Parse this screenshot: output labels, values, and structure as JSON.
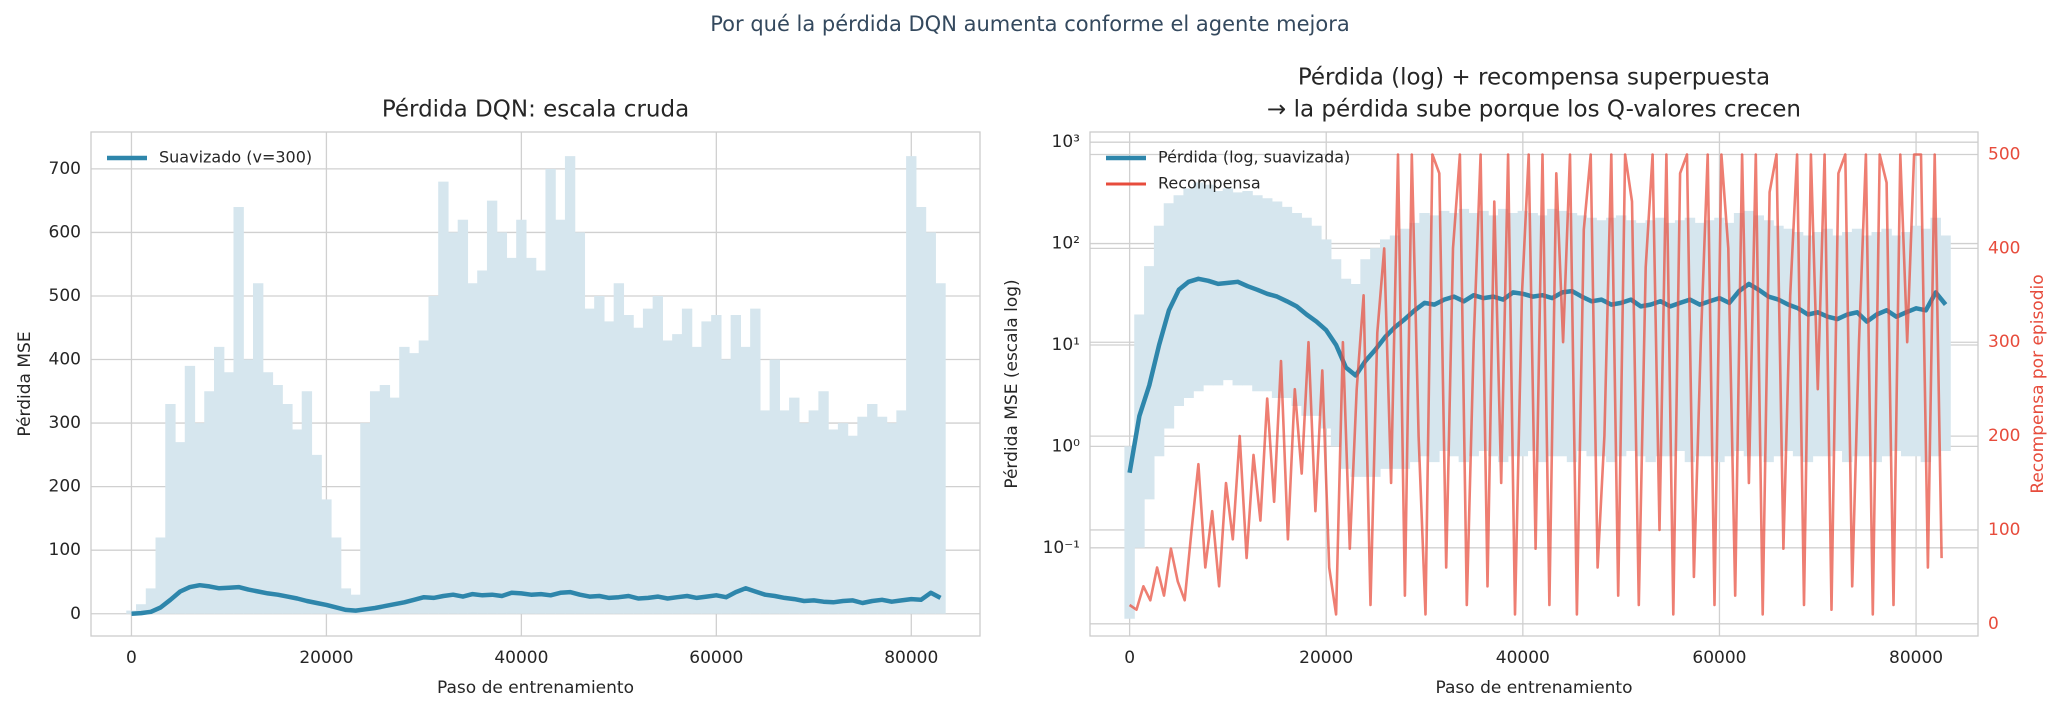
{
  "title": "Por qué la pérdida DQN aumenta conforme el agente mejora",
  "chart_data": [
    {
      "type": "line",
      "title": [
        "Pérdida DQN: escala cruda"
      ],
      "xlabel": "Paso de entrenamiento",
      "ylabel": "Pérdida MSE",
      "xlim": [
        -4150,
        87050
      ],
      "ylim": [
        -35,
        758
      ],
      "xticks": [
        0,
        20000,
        40000,
        60000,
        80000
      ],
      "yticks": [
        0,
        100,
        200,
        300,
        400,
        500,
        600,
        700
      ],
      "grid": true,
      "log_scale": false,
      "legend": "upper left",
      "x": [
        0,
        1000,
        2000,
        3000,
        4000,
        5000,
        6000,
        7000,
        8000,
        9000,
        10000,
        11000,
        12000,
        13000,
        14000,
        15000,
        16000,
        17000,
        18000,
        19000,
        20000,
        21000,
        22000,
        23000,
        24000,
        25000,
        26000,
        27000,
        28000,
        29000,
        30000,
        31000,
        32000,
        33000,
        34000,
        35000,
        36000,
        37000,
        38000,
        39000,
        40000,
        41000,
        42000,
        43000,
        44000,
        45000,
        46000,
        47000,
        48000,
        49000,
        50000,
        51000,
        52000,
        53000,
        54000,
        55000,
        56000,
        57000,
        58000,
        59000,
        60000,
        61000,
        62000,
        63000,
        64000,
        65000,
        66000,
        67000,
        68000,
        69000,
        70000,
        71000,
        72000,
        73000,
        74000,
        75000,
        76000,
        77000,
        78000,
        79000,
        80000,
        81000,
        82000,
        83000
      ],
      "series": [
        {
          "style": "spikes",
          "color": "#d6e6ee",
          "values": [
            5,
            15,
            40,
            120,
            330,
            270,
            390,
            300,
            350,
            420,
            380,
            640,
            400,
            520,
            380,
            360,
            330,
            290,
            350,
            250,
            180,
            120,
            40,
            30,
            300,
            350,
            360,
            340,
            420,
            410,
            430,
            500,
            680,
            600,
            620,
            520,
            540,
            650,
            600,
            560,
            620,
            560,
            540,
            700,
            620,
            720,
            600,
            480,
            500,
            460,
            520,
            470,
            450,
            480,
            500,
            430,
            440,
            480,
            420,
            460,
            470,
            400,
            470,
            420,
            480,
            320,
            400,
            320,
            340,
            300,
            320,
            350,
            290,
            300,
            280,
            310,
            330,
            310,
            300,
            320,
            720,
            640,
            600,
            520
          ]
        },
        {
          "name": "Suavizado (v=300)",
          "style": "line",
          "color": "#2e86ab",
          "values": [
            0,
            1,
            3,
            10,
            22,
            35,
            42,
            45,
            43,
            40,
            41,
            42,
            38,
            35,
            32,
            30,
            27,
            24,
            20,
            17,
            14,
            10,
            6,
            5,
            7,
            9,
            12,
            15,
            18,
            22,
            26,
            25,
            28,
            30,
            27,
            31,
            29,
            30,
            28,
            33,
            32,
            30,
            31,
            29,
            33,
            34,
            30,
            27,
            28,
            25,
            26,
            28,
            24,
            25,
            27,
            24,
            26,
            28,
            25,
            27,
            29,
            26,
            34,
            40,
            35,
            30,
            28,
            25,
            23,
            20,
            21,
            19,
            18,
            20,
            21,
            17,
            20,
            22,
            19,
            21,
            23,
            22,
            33,
            25
          ]
        }
      ]
    },
    {
      "type": "line",
      "title": [
        "Pérdida (log) + recompensa superpuesta",
        "→ la pérdida sube porque los Q-valores crecen"
      ],
      "xlabel": "Paso de entrenamiento",
      "ylabel": "Pérdida MSE (escala log)",
      "y2label": "Recompensa por episodio",
      "y2color": "#e74c3c",
      "xlim": [
        -4030,
        86300
      ],
      "ylim": [
        0.0135,
        1260
      ],
      "y2lim": [
        -13,
        524
      ],
      "xticks": [
        0,
        20000,
        40000,
        60000,
        80000
      ],
      "yticks": [
        {
          "value": 0.1,
          "label": "10⁻¹"
        },
        {
          "value": 1,
          "label": "10⁰"
        },
        {
          "value": 10,
          "label": "10¹"
        },
        {
          "value": 100,
          "label": "10²"
        },
        {
          "value": 1000,
          "label": "10³"
        }
      ],
      "y2ticks": [
        0,
        100,
        200,
        300,
        400,
        500
      ],
      "grid": true,
      "log_scale": true,
      "legend": "upper left",
      "x": [
        0,
        1000,
        2000,
        3000,
        4000,
        5000,
        6000,
        7000,
        8000,
        9000,
        10000,
        11000,
        12000,
        13000,
        14000,
        15000,
        16000,
        17000,
        18000,
        19000,
        20000,
        21000,
        22000,
        23000,
        24000,
        25000,
        26000,
        27000,
        28000,
        29000,
        30000,
        31000,
        32000,
        33000,
        34000,
        35000,
        36000,
        37000,
        38000,
        39000,
        40000,
        41000,
        42000,
        43000,
        44000,
        45000,
        46000,
        47000,
        48000,
        49000,
        50000,
        51000,
        52000,
        53000,
        54000,
        55000,
        56000,
        57000,
        58000,
        59000,
        60000,
        61000,
        62000,
        63000,
        64000,
        65000,
        66000,
        67000,
        68000,
        69000,
        70000,
        71000,
        72000,
        73000,
        74000,
        75000,
        76000,
        77000,
        78000,
        79000,
        80000,
        81000,
        82000,
        83000
      ],
      "series": [
        {
          "style": "band",
          "color": "#d6e6ee",
          "low": [
            0.02,
            0.1,
            0.3,
            0.8,
            1.5,
            2.5,
            3,
            3.5,
            4,
            4,
            4.5,
            4,
            4,
            3.5,
            3.5,
            3,
            3,
            2.5,
            2,
            2,
            1.5,
            1,
            0.6,
            0.5,
            0.5,
            0.5,
            0.6,
            0.6,
            0.6,
            0.7,
            0.8,
            0.7,
            0.9,
            0.8,
            0.7,
            0.8,
            0.9,
            0.8,
            0.7,
            0.8,
            0.8,
            0.9,
            0.7,
            0.8,
            0.8,
            0.7,
            0.9,
            0.8,
            0.8,
            0.7,
            0.8,
            0.9,
            0.8,
            0.7,
            0.8,
            0.8,
            0.9,
            0.7,
            0.8,
            0.8,
            0.7,
            0.8,
            0.9,
            0.8,
            0.8,
            0.7,
            0.8,
            0.9,
            0.8,
            0.7,
            0.8,
            0.8,
            0.9,
            0.7,
            0.8,
            0.8,
            0.7,
            0.8,
            0.9,
            0.8,
            0.8,
            0.7,
            0.8,
            0.9
          ],
          "values": [
            1,
            20,
            60,
            150,
            250,
            300,
            350,
            400,
            380,
            330,
            350,
            320,
            330,
            300,
            280,
            260,
            230,
            200,
            180,
            150,
            110,
            70,
            45,
            40,
            70,
            90,
            110,
            120,
            140,
            160,
            200,
            190,
            210,
            200,
            220,
            200,
            210,
            190,
            220,
            200,
            210,
            200,
            190,
            220,
            210,
            200,
            190,
            180,
            170,
            180,
            190,
            170,
            160,
            170,
            180,
            160,
            170,
            180,
            160,
            170,
            180,
            160,
            200,
            210,
            190,
            170,
            150,
            140,
            130,
            120,
            130,
            140,
            120,
            130,
            140,
            120,
            130,
            140,
            120,
            130,
            150,
            140,
            180,
            120
          ]
        },
        {
          "name": "Pérdida (log, suavizada)",
          "style": "line",
          "color": "#2e86ab",
          "values": [
            0.55,
            2,
            4,
            10,
            22,
            35,
            42,
            45,
            43,
            40,
            41,
            42,
            38,
            35,
            32,
            30,
            27,
            24,
            20,
            17,
            14,
            10,
            6,
            5,
            7,
            9,
            12,
            15,
            18,
            22,
            26,
            25,
            28,
            30,
            27,
            31,
            29,
            30,
            28,
            33,
            32,
            30,
            31,
            29,
            33,
            34,
            30,
            27,
            28,
            25,
            26,
            28,
            24,
            25,
            27,
            24,
            26,
            28,
            25,
            27,
            29,
            26,
            34,
            40,
            35,
            30,
            28,
            25,
            23,
            20,
            21,
            19,
            18,
            20,
            21,
            17,
            20,
            22,
            19,
            21,
            23,
            22,
            33,
            25
          ]
        },
        {
          "name": "Recompensa",
          "style": "line",
          "color": "#e74c3c",
          "axis": "y2",
          "x": [
            0,
            700,
            1400,
            2100,
            2800,
            3500,
            4200,
            4900,
            5600,
            6300,
            7000,
            7700,
            8400,
            9100,
            9800,
            10500,
            11200,
            11900,
            12600,
            13300,
            14000,
            14700,
            15400,
            16100,
            16800,
            17500,
            18200,
            18900,
            19600,
            20300,
            21000,
            21700,
            22400,
            23100,
            23800,
            24500,
            25200,
            25900,
            26600,
            27300,
            28000,
            28700,
            29400,
            30100,
            30800,
            31500,
            32200,
            32900,
            33600,
            34300,
            35000,
            35700,
            36400,
            37100,
            37800,
            38500,
            39200,
            39900,
            40600,
            41300,
            42000,
            42700,
            43400,
            44100,
            44800,
            45500,
            46200,
            46900,
            47600,
            48300,
            49000,
            49700,
            50400,
            51100,
            51800,
            52500,
            53200,
            53900,
            54600,
            55300,
            56000,
            56700,
            57400,
            58100,
            58800,
            59500,
            60200,
            60900,
            61600,
            62300,
            63000,
            63700,
            64400,
            65100,
            65800,
            66500,
            67200,
            67900,
            68600,
            69300,
            70000,
            70700,
            71400,
            72100,
            72800,
            73500,
            74200,
            74900,
            75600,
            76300,
            77000,
            77700,
            78400,
            79100,
            79800,
            80500,
            81200,
            81900,
            82600
          ],
          "values": [
            20,
            15,
            40,
            25,
            60,
            30,
            80,
            45,
            25,
            100,
            170,
            60,
            120,
            40,
            150,
            90,
            200,
            70,
            180,
            110,
            240,
            130,
            280,
            90,
            250,
            160,
            300,
            120,
            270,
            60,
            10,
            300,
            80,
            250,
            350,
            20,
            310,
            400,
            150,
            500,
            30,
            500,
            200,
            10,
            500,
            480,
            60,
            400,
            500,
            20,
            300,
            500,
            40,
            450,
            150,
            500,
            10,
            350,
            500,
            80,
            500,
            20,
            480,
            300,
            500,
            10,
            420,
            500,
            60,
            200,
            500,
            30,
            500,
            450,
            20,
            380,
            500,
            100,
            500,
            10,
            480,
            500,
            50,
            300,
            500,
            20,
            500,
            400,
            30,
            500,
            150,
            500,
            10,
            460,
            500,
            80,
            350,
            500,
            20,
            500,
            250,
            500,
            15,
            480,
            500,
            40,
            300,
            500,
            10,
            500,
            470,
            20,
            500,
            300,
            500,
            500,
            60,
            500,
            70
          ]
        }
      ]
    }
  ]
}
